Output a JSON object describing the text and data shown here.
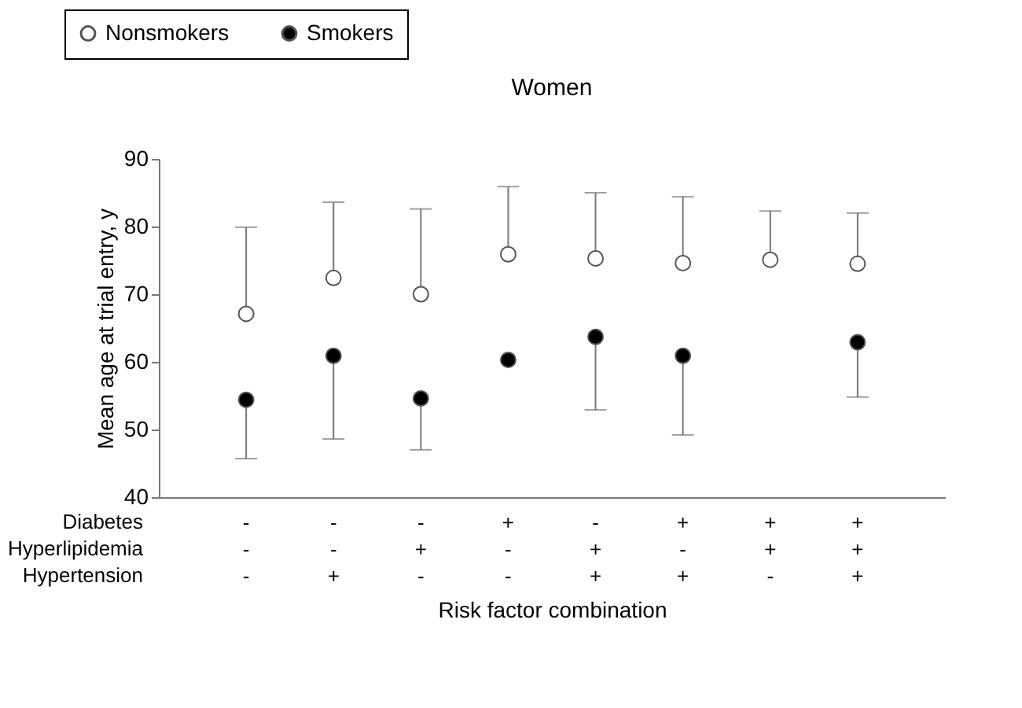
{
  "chart_data": {
    "type": "scatter",
    "title": "Women",
    "xlabel": "Risk factor combination",
    "ylabel": "Mean age at trial entry, y",
    "categories": [
      "-\n-\n-",
      "-\n-\n+",
      "-\n+\n-",
      "+\n-\n-",
      "-\n+\n+",
      "+\n-\n+",
      "+\n+\n-",
      "+\n+\n+"
    ],
    "annotations": [
      "Diabetes",
      "Hyperlipidemia",
      "Hypertension"
    ],
    "series": [
      {
        "name": "Nonsmokers",
        "color": "#ffffff",
        "values": [
          67.1,
          72.4,
          70,
          75.9,
          75.3,
          74.6,
          75.1,
          74.5
        ],
        "errors": [
          [
            67.1,
            79.9
          ],
          [
            72.4,
            83.6
          ],
          [
            70,
            82.6
          ],
          [
            75.9,
            85.9
          ],
          [
            75.3,
            85
          ],
          [
            74.6,
            84.4
          ],
          [
            75.1,
            82.3
          ],
          [
            74.5,
            82
          ]
        ]
      },
      {
        "name": "Smokers",
        "color": "#000000",
        "values": [
          54.4,
          60.9,
          54.6,
          60.3,
          63.7,
          60.9,
          null,
          62.9
        ],
        "errors": [
          [
            45.7,
            54.4
          ],
          [
            48.6,
            60.9
          ],
          [
            47,
            54.6
          ],
          null,
          [
            52.9,
            63.7
          ],
          [
            49.2,
            60.9
          ],
          null,
          [
            54.8,
            62.9
          ]
        ]
      }
    ],
    "ylim": [
      40,
      90
    ],
    "yticks": [
      40,
      50,
      60,
      70,
      80,
      90
    ],
    "grid": false,
    "legend": "top left",
    "marker": "circle"
  }
}
